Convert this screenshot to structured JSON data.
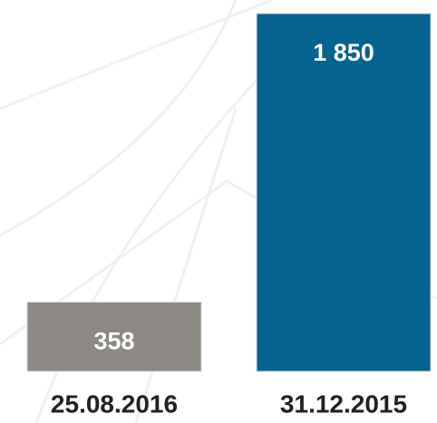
{
  "chart_data": {
    "type": "bar",
    "categories": [
      "25.08.2016",
      "31.12.2015"
    ],
    "values": [
      358,
      1850
    ],
    "value_labels": [
      "358",
      "1 850"
    ],
    "colors": [
      "#8c8984",
      "#05648f"
    ]
  }
}
